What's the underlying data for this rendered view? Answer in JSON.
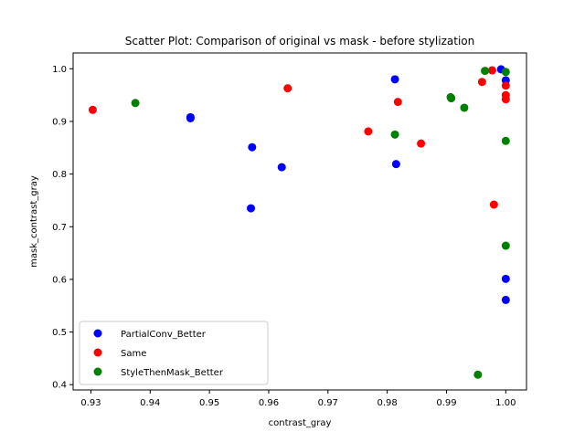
{
  "chart_data": {
    "type": "scatter",
    "title": "Scatter Plot: Comparison of original vs mask - before stylization",
    "xlabel": "contrast_gray",
    "ylabel": "mask_contrast_gray",
    "xlim": [
      0.927,
      1.0035
    ],
    "ylim": [
      0.39,
      1.03
    ],
    "x_ticks": [
      0.93,
      0.94,
      0.95,
      0.96,
      0.97,
      0.98,
      0.99,
      1.0
    ],
    "x_tick_labels": [
      "0.93",
      "0.94",
      "0.95",
      "0.96",
      "0.97",
      "0.98",
      "0.99",
      "1.00"
    ],
    "y_ticks": [
      0.4,
      0.5,
      0.6,
      0.7,
      0.8,
      0.9,
      1.0
    ],
    "y_tick_labels": [
      "0.4",
      "0.5",
      "0.6",
      "0.7",
      "0.8",
      "0.9",
      "1.0"
    ],
    "grid": false,
    "legend_position": "lower-left",
    "series": [
      {
        "name": "PartialConv_Better",
        "color": "#0000ff",
        "points": [
          {
            "x": 0.9468,
            "y": 0.906
          },
          {
            "x": 0.9468,
            "y": 0.908
          },
          {
            "x": 0.9572,
            "y": 0.851
          },
          {
            "x": 0.957,
            "y": 0.735
          },
          {
            "x": 0.9622,
            "y": 0.813
          },
          {
            "x": 0.9813,
            "y": 0.98
          },
          {
            "x": 0.9815,
            "y": 0.819
          },
          {
            "x": 0.9992,
            "y": 0.999
          },
          {
            "x": 1.0,
            "y": 0.978
          },
          {
            "x": 1.0,
            "y": 0.601
          },
          {
            "x": 1.0,
            "y": 0.561
          }
        ]
      },
      {
        "name": "Same",
        "color": "#ff0000",
        "points": [
          {
            "x": 0.9303,
            "y": 0.922
          },
          {
            "x": 0.9632,
            "y": 0.963
          },
          {
            "x": 0.9768,
            "y": 0.881
          },
          {
            "x": 0.9818,
            "y": 0.937
          },
          {
            "x": 0.9857,
            "y": 0.858
          },
          {
            "x": 0.996,
            "y": 0.975
          },
          {
            "x": 0.9977,
            "y": 0.997
          },
          {
            "x": 0.998,
            "y": 0.742
          },
          {
            "x": 1.0,
            "y": 0.968
          },
          {
            "x": 1.0,
            "y": 0.95
          },
          {
            "x": 1.0,
            "y": 0.942
          }
        ]
      },
      {
        "name": "StyleThenMask_Better",
        "color": "#008000",
        "points": [
          {
            "x": 0.9375,
            "y": 0.935
          },
          {
            "x": 0.9813,
            "y": 0.875
          },
          {
            "x": 0.9907,
            "y": 0.946
          },
          {
            "x": 0.9908,
            "y": 0.944
          },
          {
            "x": 0.993,
            "y": 0.926
          },
          {
            "x": 0.9965,
            "y": 0.996
          },
          {
            "x": 1.0,
            "y": 0.994
          },
          {
            "x": 1.0,
            "y": 0.863
          },
          {
            "x": 1.0,
            "y": 0.664
          },
          {
            "x": 0.9953,
            "y": 0.419
          }
        ]
      }
    ]
  }
}
